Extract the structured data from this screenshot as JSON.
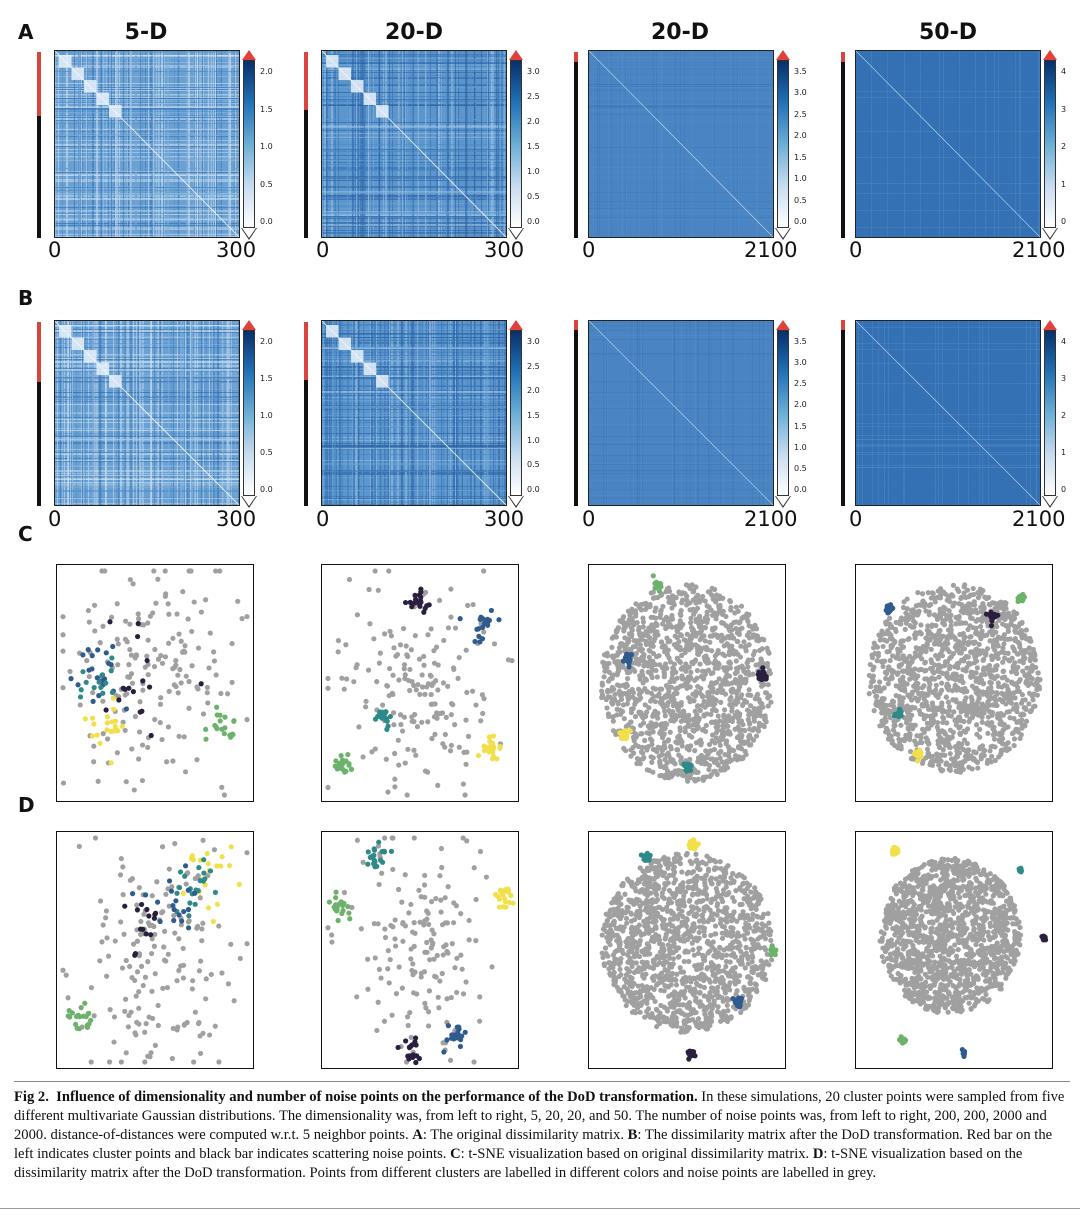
{
  "panels": {
    "A": "A",
    "B": "B",
    "C": "C",
    "D": "D"
  },
  "columns": [
    {
      "title": "5-D",
      "axis_start": "0",
      "axis_end": "300",
      "cbar_ticks": [
        "2.0",
        "1.5",
        "1.0",
        "0.5",
        "0.0"
      ]
    },
    {
      "title": "20-D",
      "axis_start": "0",
      "axis_end": "300",
      "cbar_ticks": [
        "3.0",
        "2.5",
        "2.0",
        "1.5",
        "1.0",
        "0.5",
        "0.0"
      ]
    },
    {
      "title": "20-D",
      "axis_start": "0",
      "axis_end": "2100",
      "cbar_ticks": [
        "3.5",
        "3.0",
        "2.5",
        "2.0",
        "1.5",
        "1.0",
        "0.5",
        "0.0"
      ]
    },
    {
      "title": "50-D",
      "axis_start": "0",
      "axis_end": "2100",
      "cbar_ticks": [
        "4",
        "3",
        "2",
        "1",
        "0"
      ]
    }
  ],
  "rowB_cbar_ticks": [
    [
      "2.0",
      "1.5",
      "1.0",
      "0.5",
      "0.0"
    ],
    [
      "3.0",
      "2.5",
      "2.0",
      "1.5",
      "1.0",
      "0.5",
      "0.0"
    ],
    [
      "3.5",
      "3.0",
      "2.5",
      "2.0",
      "1.5",
      "1.0",
      "0.5",
      "0.0"
    ],
    [
      "4",
      "3",
      "2",
      "1",
      "0"
    ]
  ],
  "colors": {
    "noise": "#a0a0a0",
    "clusters": [
      "#2b1f3f",
      "#2f5b8f",
      "#2e8a88",
      "#6db26a",
      "#f1e04a"
    ],
    "cluster_bar": "#d9443d",
    "noise_bar": "#111111"
  },
  "caption": {
    "fig_label": "Fig 2.",
    "bold_title": "Influence of dimensionality and number of noise points on the performance of the DoD transformation.",
    "text_1": " In these simulations, 20 cluster points were sampled from five different multivariate Gaussian distributions. The dimensionality was, from left to right, 5, 20, 20, and 50. The number of noise points was, from left to right, 200, 200, 2000 and 2000. distance-of-distances were computed w.r.t. 5 neighbor points. ",
    "a_label": "A",
    "a_text": ": The original dissimilarity matrix. ",
    "b_label": "B",
    "b_text": ": The dissimilarity matrix after the DoD transformation. Red bar on the left indicates cluster points and black bar indicates scattering noise points. ",
    "c_label": "C",
    "c_text": ": t-SNE visualization based on original dissimilarity matrix. ",
    "d_label": "D",
    "d_text": ": t-SNE visualization based on the dissimilarity matrix after the DoD transformation. Points from different clusters are labelled in different colors and noise points are labelled in grey."
  }
}
